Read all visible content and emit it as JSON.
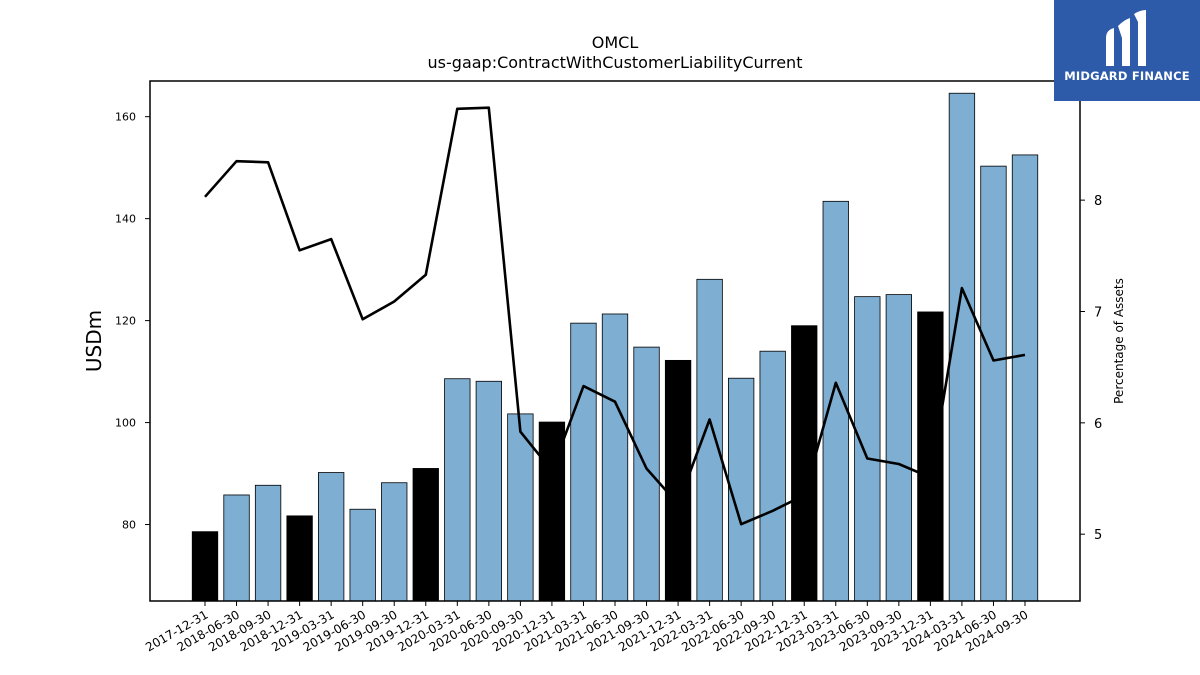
{
  "chart_data": {
    "type": "bar",
    "title": "OMCL",
    "subtitle": "us-gaap:ContractWithCustomerLiabilityCurrent",
    "ylabel": "USDm",
    "ylabel_right": "Percentage of Assets",
    "ylim": [
      65,
      167
    ],
    "ylim_right": [
      4.4,
      9.07
    ],
    "yticks": [
      80,
      100,
      120,
      140,
      160
    ],
    "yticks_right": [
      5,
      6,
      7,
      8
    ],
    "categories": [
      "2017-12-31",
      "2018-06-30",
      "2018-09-30",
      "2018-12-31",
      "2019-03-31",
      "2019-06-30",
      "2019-09-30",
      "2019-12-31",
      "2020-03-31",
      "2020-06-30",
      "2020-09-30",
      "2020-12-31",
      "2021-03-31",
      "2021-06-30",
      "2021-09-30",
      "2021-12-31",
      "2022-03-31",
      "2022-06-30",
      "2022-09-30",
      "2022-12-31",
      "2023-03-31",
      "2023-06-30",
      "2023-09-30",
      "2023-12-31",
      "2024-03-31",
      "2024-06-30",
      "2024-09-30"
    ],
    "series": [
      {
        "values": [
          78.6,
          85.8,
          87.7,
          81.7,
          90.2,
          83.0,
          88.2,
          91.0,
          108.6,
          108.1,
          101.7,
          100.1,
          119.5,
          121.3,
          114.8,
          112.2,
          128.1,
          108.7,
          114.0,
          119.0,
          143.4,
          124.7,
          125.1,
          121.7,
          164.6,
          150.3,
          152.5
        ],
        "axis": "left",
        "kind": "bar"
      },
      {
        "values": [
          8.03,
          8.35,
          8.34,
          7.55,
          7.65,
          6.93,
          7.09,
          7.33,
          8.82,
          8.83,
          5.92,
          5.57,
          6.33,
          6.19,
          5.59,
          5.27,
          6.03,
          5.09,
          5.21,
          5.35,
          6.36,
          5.68,
          5.63,
          5.51,
          7.21,
          6.56,
          6.61
        ],
        "axis": "right",
        "kind": "line"
      }
    ],
    "bar_colors": {
      "year_end": "#000000",
      "other": "#7eaed2"
    },
    "line_color": "#000000",
    "grid": false
  },
  "logo": {
    "text": "MIDGARD FINANCE"
  }
}
